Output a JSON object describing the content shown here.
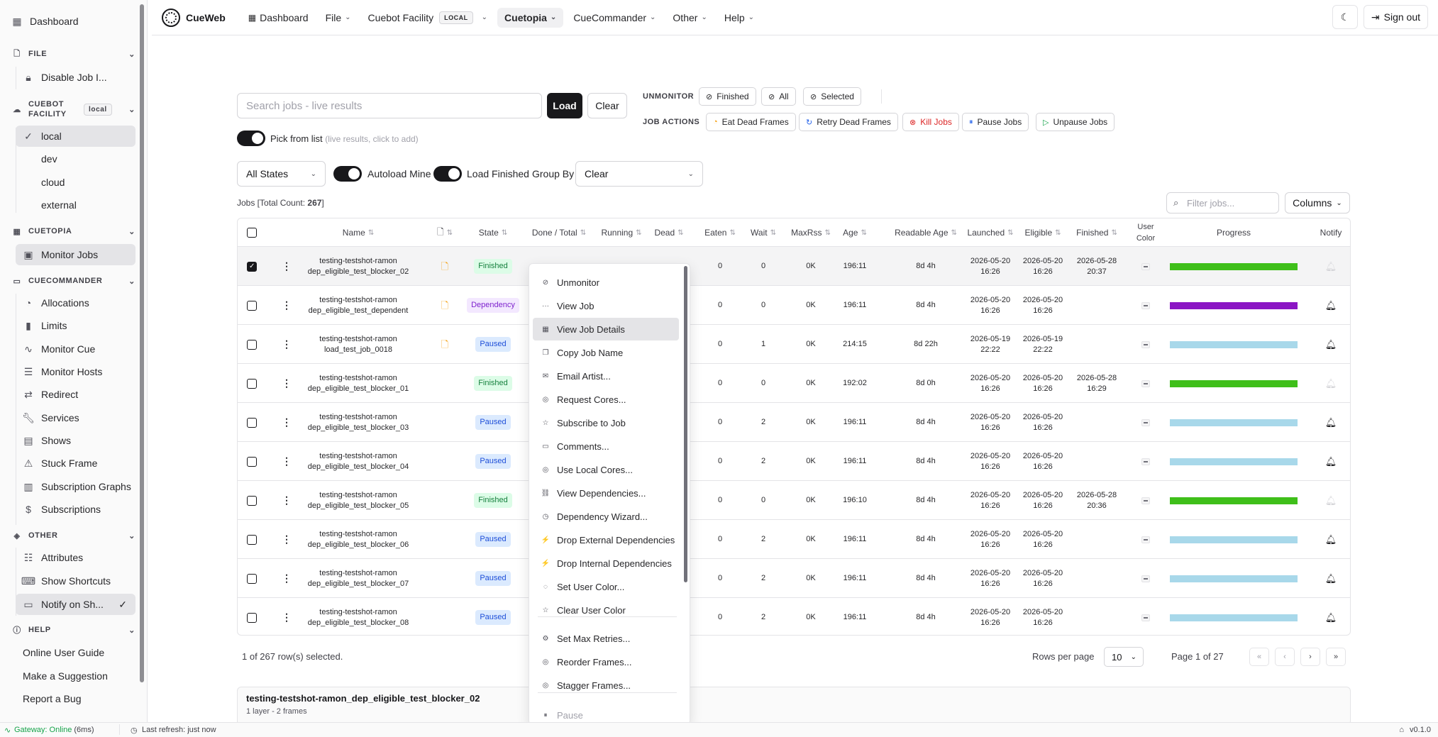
{
  "sidebar": {
    "dashboard": "Dashboard",
    "file_section": "FILE",
    "file_items": [
      "Disable Job I..."
    ],
    "cuebot_section": "CUEBOT FACILITY",
    "cuebot_badge": "local",
    "facilities": [
      "local",
      "dev",
      "cloud",
      "external"
    ],
    "cuetopia_section": "CUETOPIA",
    "cuetopia_items": [
      "Monitor Jobs"
    ],
    "cuecommander_section": "CUECOMMANDER",
    "cuecommander_items": [
      "Allocations",
      "Limits",
      "Monitor Cue",
      "Monitor Hosts",
      "Redirect",
      "Services",
      "Shows",
      "Stuck Frame",
      "Subscription Graphs",
      "Subscriptions"
    ],
    "other_section": "OTHER",
    "other_items": [
      "Attributes",
      "Show Shortcuts",
      "Notify on Sh..."
    ],
    "help_section": "HELP",
    "help_items": [
      "Online User Guide",
      "Make a Suggestion",
      "Report a Bug"
    ]
  },
  "topbar": {
    "brand": "CueWeb",
    "dashboard": "Dashboard",
    "file": "File",
    "facility": "Cuebot Facility",
    "facility_badge": "LOCAL",
    "cuetopia": "Cuetopia",
    "cuecommander": "CueCommander",
    "other": "Other",
    "help": "Help",
    "sign_out": "Sign out"
  },
  "search": {
    "placeholder": "Search jobs - live results",
    "load": "Load",
    "clear": "Clear",
    "pick_label": "Pick from list",
    "pick_hint": "(live results, click to add)"
  },
  "actions": {
    "unmonitor_label": "UNMONITOR",
    "unmonitor_buttons": [
      "Finished",
      "All",
      "Selected"
    ],
    "job_actions_label": "JOB ACTIONS",
    "eat_dead": "Eat Dead Frames",
    "retry_dead": "Retry Dead Frames",
    "kill_jobs": "Kill Jobs",
    "pause_jobs": "Pause Jobs",
    "unpause_jobs": "Unpause Jobs"
  },
  "filters": {
    "state": "All States",
    "autoload": "Autoload Mine",
    "load_finished": "Load Finished",
    "group_by_label": "Group By",
    "group_by_value": "Clear"
  },
  "table": {
    "count_prefix": "Jobs [Total Count: ",
    "count": "267",
    "count_suffix": "]",
    "filter_placeholder": "Filter jobs...",
    "columns_button": "Columns",
    "headers": {
      "name": "Name",
      "state": "State",
      "done_total": "Done / Total",
      "running": "Running",
      "dead": "Dead",
      "eaten": "Eaten",
      "wait": "Wait",
      "maxrss": "MaxRss",
      "age": "Age",
      "readable_age": "Readable Age",
      "launched": "Launched",
      "eligible": "Eligible",
      "finished": "Finished",
      "user_color": "User Color",
      "progress": "Progress",
      "notify": "Notify"
    },
    "rows": [
      {
        "name1": "testing-testshot-ramon",
        "name2": "dep_eligible_test_blocker_02",
        "doc": true,
        "state": "Finished",
        "eaten": "0",
        "wait": "0",
        "maxrss": "0K",
        "age": "196:11",
        "readable": "8d 4h",
        "launched1": "2026-05-20",
        "launched2": "16:26",
        "eligible1": "2026-05-20",
        "eligible2": "16:26",
        "finished1": "2026-05-28",
        "finished2": "20:37",
        "progress_color": "#3fbf1a",
        "notify_on": false,
        "selected": true
      },
      {
        "name1": "testing-testshot-ramon",
        "name2": "dep_eligible_test_dependent",
        "doc": true,
        "state": "Dependency",
        "eaten": "0",
        "wait": "0",
        "maxrss": "0K",
        "age": "196:11",
        "readable": "8d 4h",
        "launched1": "2026-05-20",
        "launched2": "16:26",
        "eligible1": "2026-05-20",
        "eligible2": "16:26",
        "finished1": "",
        "finished2": "",
        "progress_color": "#8b16c4",
        "notify_on": true,
        "selected": false
      },
      {
        "name1": "testing-testshot-ramon",
        "name2": "load_test_job_0018",
        "doc": true,
        "state": "Paused",
        "eaten": "0",
        "wait": "1",
        "maxrss": "0K",
        "age": "214:15",
        "readable": "8d 22h",
        "launched1": "2026-05-19",
        "launched2": "22:22",
        "eligible1": "2026-05-19",
        "eligible2": "22:22",
        "finished1": "",
        "finished2": "",
        "progress_color": "#a8d8ea",
        "notify_on": true,
        "selected": false
      },
      {
        "name1": "testing-testshot-ramon",
        "name2": "dep_eligible_test_blocker_01",
        "doc": false,
        "state": "Finished",
        "eaten": "0",
        "wait": "0",
        "maxrss": "0K",
        "age": "192:02",
        "readable": "8d 0h",
        "launched1": "2026-05-20",
        "launched2": "16:26",
        "eligible1": "2026-05-20",
        "eligible2": "16:26",
        "finished1": "2026-05-28",
        "finished2": "16:29",
        "progress_color": "#3fbf1a",
        "notify_on": false,
        "selected": false
      },
      {
        "name1": "testing-testshot-ramon",
        "name2": "dep_eligible_test_blocker_03",
        "doc": false,
        "state": "Paused",
        "eaten": "0",
        "wait": "2",
        "maxrss": "0K",
        "age": "196:11",
        "readable": "8d 4h",
        "launched1": "2026-05-20",
        "launched2": "16:26",
        "eligible1": "2026-05-20",
        "eligible2": "16:26",
        "finished1": "",
        "finished2": "",
        "progress_color": "#a8d8ea",
        "notify_on": true,
        "selected": false
      },
      {
        "name1": "testing-testshot-ramon",
        "name2": "dep_eligible_test_blocker_04",
        "doc": false,
        "state": "Paused",
        "eaten": "0",
        "wait": "2",
        "maxrss": "0K",
        "age": "196:11",
        "readable": "8d 4h",
        "launched1": "2026-05-20",
        "launched2": "16:26",
        "eligible1": "2026-05-20",
        "eligible2": "16:26",
        "finished1": "",
        "finished2": "",
        "progress_color": "#a8d8ea",
        "notify_on": true,
        "selected": false
      },
      {
        "name1": "testing-testshot-ramon",
        "name2": "dep_eligible_test_blocker_05",
        "doc": false,
        "state": "Finished",
        "eaten": "0",
        "wait": "0",
        "maxrss": "0K",
        "age": "196:10",
        "readable": "8d 4h",
        "launched1": "2026-05-20",
        "launched2": "16:26",
        "eligible1": "2026-05-20",
        "eligible2": "16:26",
        "finished1": "2026-05-28",
        "finished2": "20:36",
        "progress_color": "#3fbf1a",
        "notify_on": false,
        "selected": false
      },
      {
        "name1": "testing-testshot-ramon",
        "name2": "dep_eligible_test_blocker_06",
        "doc": false,
        "state": "Paused",
        "eaten": "0",
        "wait": "2",
        "maxrss": "0K",
        "age": "196:11",
        "readable": "8d 4h",
        "launched1": "2026-05-20",
        "launched2": "16:26",
        "eligible1": "2026-05-20",
        "eligible2": "16:26",
        "finished1": "",
        "finished2": "",
        "progress_color": "#a8d8ea",
        "notify_on": true,
        "selected": false
      },
      {
        "name1": "testing-testshot-ramon",
        "name2": "dep_eligible_test_blocker_07",
        "doc": false,
        "state": "Paused",
        "eaten": "0",
        "wait": "2",
        "maxrss": "0K",
        "age": "196:11",
        "readable": "8d 4h",
        "launched1": "2026-05-20",
        "launched2": "16:26",
        "eligible1": "2026-05-20",
        "eligible2": "16:26",
        "finished1": "",
        "finished2": "",
        "progress_color": "#a8d8ea",
        "notify_on": true,
        "selected": false
      },
      {
        "name1": "testing-testshot-ramon",
        "name2": "dep_eligible_test_blocker_08",
        "doc": false,
        "state": "Paused",
        "eaten": "0",
        "wait": "2",
        "maxrss": "0K",
        "age": "196:11",
        "readable": "8d 4h",
        "launched1": "2026-05-20",
        "launched2": "16:26",
        "eligible1": "2026-05-20",
        "eligible2": "16:26",
        "finished1": "",
        "finished2": "",
        "progress_color": "#a8d8ea",
        "notify_on": true,
        "selected": false
      }
    ]
  },
  "pagination": {
    "selected_text": "1 of 267 row(s) selected.",
    "rows_per_page_label": "Rows per page",
    "rows_per_page": "10",
    "page_text": "Page 1 of 27"
  },
  "details": {
    "title": "testing-testshot-ramon_dep_eligible_test_blocker_02",
    "subtitle": "1 layer - 2 frames"
  },
  "context_menu": {
    "items": [
      {
        "label": "Unmonitor",
        "icon": "eye-off-icon",
        "glyph": "⊘"
      },
      {
        "label": "View Job",
        "icon": "dots-icon",
        "glyph": "···"
      },
      {
        "label": "View Job Details",
        "icon": "grid-icon",
        "glyph": "▦"
      },
      {
        "label": "Copy Job Name",
        "icon": "copy-icon",
        "glyph": "❐"
      },
      {
        "label": "Email Artist...",
        "icon": "mail-icon",
        "glyph": "✉"
      },
      {
        "label": "Request Cores...",
        "icon": "target-icon",
        "glyph": "◎"
      },
      {
        "label": "Subscribe to Job",
        "icon": "star-icon",
        "glyph": "☆"
      },
      {
        "label": "Comments...",
        "icon": "comment-icon",
        "glyph": "▭"
      },
      {
        "label": "Use Local Cores...",
        "icon": "cpu-icon",
        "glyph": "◎"
      },
      {
        "label": "View Dependencies...",
        "icon": "link-icon",
        "glyph": "⛓"
      },
      {
        "label": "Dependency Wizard...",
        "icon": "wizard-icon",
        "glyph": "◷"
      },
      {
        "label": "Drop External Dependencies",
        "icon": "unlink-icon",
        "glyph": "⚡"
      },
      {
        "label": "Drop Internal Dependencies",
        "icon": "unlink-icon",
        "glyph": "⚡"
      },
      {
        "label": "Set User Color...",
        "icon": "palette-icon",
        "glyph": "◌"
      },
      {
        "label": "Clear User Color",
        "icon": "star-icon",
        "glyph": "☆"
      },
      {
        "label": "Set Max Retries...",
        "icon": "settings-icon",
        "glyph": "⚙"
      },
      {
        "label": "Reorder Frames...",
        "icon": "reorder-icon",
        "glyph": "◎"
      },
      {
        "label": "Stagger Frames...",
        "icon": "stagger-icon",
        "glyph": "◎"
      },
      {
        "label": "Pause",
        "icon": "pause-icon",
        "glyph": "⏸"
      }
    ]
  },
  "statusbar": {
    "gateway": "Gateway: Online",
    "gateway_latency": "(6ms)",
    "last_refresh": "Last refresh: just now",
    "version": "v0.1.0"
  }
}
